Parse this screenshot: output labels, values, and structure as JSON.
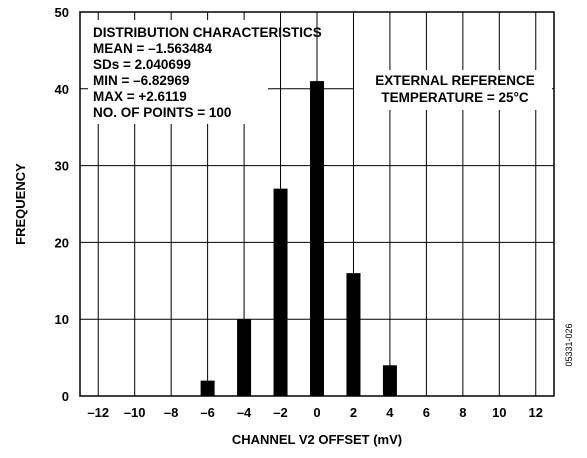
{
  "chart_data": {
    "type": "bar",
    "categories": [
      "-6",
      "-4",
      "-2",
      "0",
      "2",
      "4"
    ],
    "x": [
      -6,
      -4,
      -2,
      0,
      2,
      4
    ],
    "values": [
      2,
      10,
      27,
      41,
      16,
      4
    ],
    "xlabel": "CHANNEL V2 OFFSET (mV)",
    "ylabel": "FREQUENCY",
    "xlim": [
      -13,
      13
    ],
    "ylim": [
      0,
      50
    ],
    "x_ticks": [
      "–12",
      "–10",
      "–8",
      "–6",
      "–4",
      "–2",
      "0",
      "2",
      "4",
      "6",
      "8",
      "10",
      "12"
    ],
    "y_ticks": [
      "0",
      "10",
      "20",
      "30",
      "40",
      "50"
    ],
    "grid": true,
    "stats_box": [
      "DISTRIBUTION CHARACTERISTICS",
      "MEAN = –1.563484",
      "SDs = 2.040699",
      "MIN = –6.82969",
      "MAX = +2.6119",
      "NO. OF POINTS = 100"
    ],
    "annotation": [
      "EXTERNAL REFERENCE",
      "TEMPERATURE = 25°C"
    ],
    "figure_id": "05331-026"
  }
}
